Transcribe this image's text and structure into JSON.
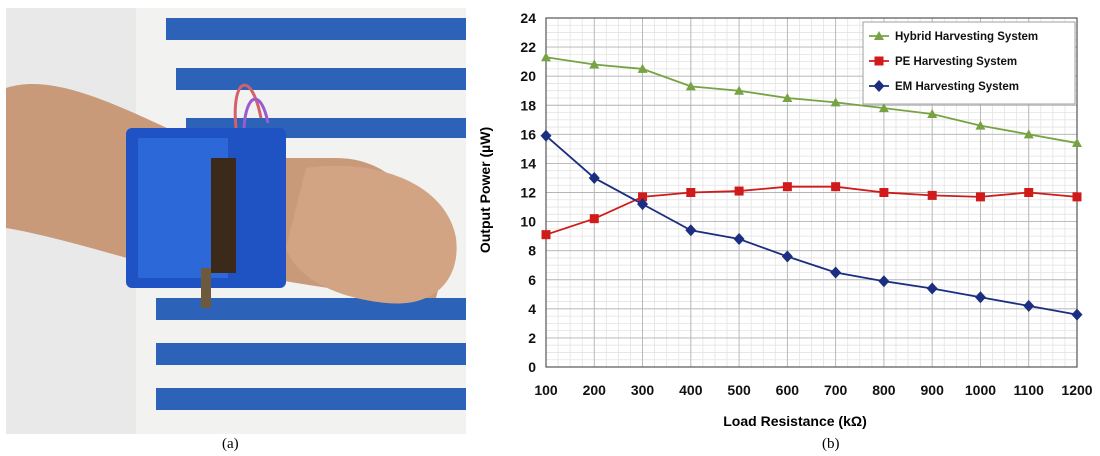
{
  "panels": [
    {
      "label": "(a)"
    },
    {
      "label": "(b)"
    }
  ],
  "chart_data": {
    "type": "line",
    "xlabel": "Load Resistance (kΩ)",
    "ylabel": "Output Power (µW)",
    "categories": [
      100,
      200,
      300,
      400,
      500,
      600,
      700,
      800,
      900,
      1000,
      1100,
      1200
    ],
    "xlim": [
      100,
      1200
    ],
    "ylim": [
      0,
      24
    ],
    "yticks": [
      0,
      2,
      4,
      6,
      8,
      10,
      12,
      14,
      16,
      18,
      20,
      22,
      24
    ],
    "grid": true,
    "legend_position": "top-right",
    "series": [
      {
        "name": "Hybrid Harvesting System",
        "color": "#77a343",
        "marker": "triangle",
        "values": [
          21.3,
          20.8,
          20.5,
          19.3,
          19.0,
          18.5,
          18.2,
          17.8,
          17.4,
          16.6,
          16.0,
          15.4
        ]
      },
      {
        "name": "PE Harvesting System",
        "color": "#d11a1a",
        "marker": "square",
        "values": [
          9.1,
          10.2,
          11.7,
          12.0,
          12.1,
          12.4,
          12.4,
          12.0,
          11.8,
          11.7,
          12.0,
          11.7
        ]
      },
      {
        "name": "EM Harvesting System",
        "color": "#1b2e80",
        "marker": "diamond",
        "values": [
          15.9,
          13.0,
          11.2,
          9.4,
          8.8,
          7.6,
          6.5,
          5.9,
          5.4,
          4.8,
          4.2,
          3.6
        ]
      }
    ]
  }
}
